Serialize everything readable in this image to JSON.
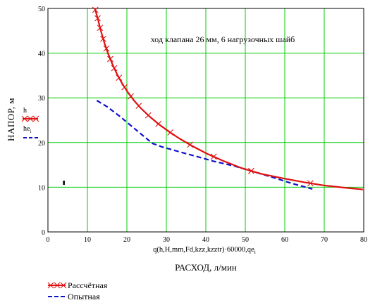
{
  "chart_data": {
    "type": "line",
    "annotation": "ход клапана 26 мм, 6 нагрузочных шайб",
    "ylabel": "НАПОР, м",
    "xlabel": "РАСХОД, л/мин",
    "x_expression": "q(h,H,mm,Fd,kzz,kzztr)·60000,qe",
    "x_expression_sub": "i",
    "xlim": [
      0,
      80
    ],
    "ylim": [
      0,
      50
    ],
    "x_ticks": [
      0,
      10,
      20,
      30,
      40,
      50,
      60,
      70,
      80
    ],
    "y_ticks": [
      0,
      10,
      20,
      30,
      40,
      50
    ],
    "grid": true,
    "grid_color": "#00cc00",
    "y_var_labels": {
      "calc": "h",
      "exp": "he",
      "exp_sub": "i"
    },
    "stray_mark": {
      "x": 4,
      "y": 11
    },
    "series": [
      {
        "name": "Рассчётная",
        "color": "#e01010",
        "style": "solid-crosses",
        "points": [
          [
            11.9,
            50
          ],
          [
            12.6,
            47.8
          ],
          [
            13.3,
            45.3
          ],
          [
            14.2,
            42.6
          ],
          [
            15.2,
            40.0
          ],
          [
            16.3,
            37.6
          ],
          [
            17.5,
            35.3
          ],
          [
            18.8,
            33.2
          ],
          [
            20.2,
            31.3
          ],
          [
            21.8,
            29.4
          ],
          [
            23.5,
            27.7
          ],
          [
            25.5,
            26.0
          ],
          [
            27.8,
            24.3
          ],
          [
            30.4,
            22.6
          ],
          [
            33.3,
            20.9
          ],
          [
            36.6,
            19.2
          ],
          [
            40.3,
            17.5
          ],
          [
            44.4,
            15.9
          ],
          [
            49.0,
            14.3
          ],
          [
            54.0,
            13.0
          ],
          [
            59.5,
            12.0
          ],
          [
            65.0,
            11.1
          ],
          [
            70.0,
            10.4
          ],
          [
            75.0,
            9.9
          ],
          [
            79.8,
            9.5
          ]
        ],
        "markers_x": [
          12.0,
          12.6,
          13.2,
          14.0,
          14.8,
          15.8,
          16.8,
          18.0,
          19.4,
          21.0,
          23.0,
          25.4,
          28.0,
          31.0,
          36.0,
          42.0,
          51.5,
          66.5
        ]
      },
      {
        "name": "Опытная",
        "color": "#1010d0",
        "style": "dashed",
        "points": [
          [
            12.4,
            29.4
          ],
          [
            15.0,
            28.0
          ],
          [
            18.0,
            26.0
          ],
          [
            21.0,
            23.8
          ],
          [
            24.0,
            21.6
          ],
          [
            26.5,
            19.8
          ],
          [
            29.0,
            19.0
          ],
          [
            33.0,
            18.0
          ],
          [
            38.0,
            16.8
          ],
          [
            42.0,
            15.8
          ],
          [
            47.0,
            14.8
          ],
          [
            52.0,
            13.5
          ],
          [
            57.0,
            12.2
          ],
          [
            62.0,
            10.8
          ],
          [
            67.0,
            9.6
          ]
        ]
      }
    ]
  }
}
